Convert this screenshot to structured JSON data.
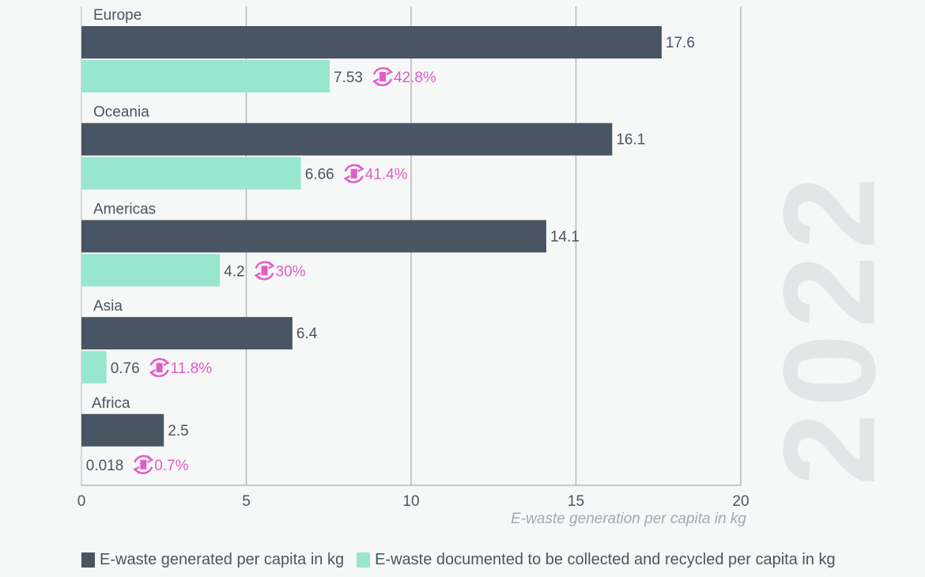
{
  "chart_data": {
    "type": "bar",
    "orientation": "horizontal",
    "categories": [
      "Europe",
      "Oceania",
      "Americas",
      "Asia",
      "Africa"
    ],
    "series": [
      {
        "name": "E-waste generated per capita in kg",
        "values": [
          17.6,
          16.1,
          14.1,
          6.4,
          2.5
        ],
        "labels": [
          "17.6",
          "16.1",
          "14.1",
          "6.4",
          "2.5"
        ],
        "color": "#4a5563"
      },
      {
        "name": "E-waste documented to be collected and recycled per capita in kg",
        "values": [
          7.53,
          6.66,
          4.2,
          0.76,
          0.018
        ],
        "labels": [
          "7.53",
          "6.66",
          "4.2",
          "0.76",
          "0.018"
        ],
        "color": "#99e6cf"
      }
    ],
    "rates": [
      "42.8%",
      "41.4%",
      "30%",
      "11.8%",
      "0.7%"
    ],
    "rate_color": "#e35bc8",
    "rate_icon": "recycle-chip-icon",
    "xlabel": "E-waste generation per capita in kg",
    "xlim": [
      0,
      20
    ],
    "xticks": [
      "0",
      "5",
      "10",
      "15",
      "20"
    ],
    "grid": true,
    "legend_placement": "bottom",
    "watermark": "2022"
  }
}
